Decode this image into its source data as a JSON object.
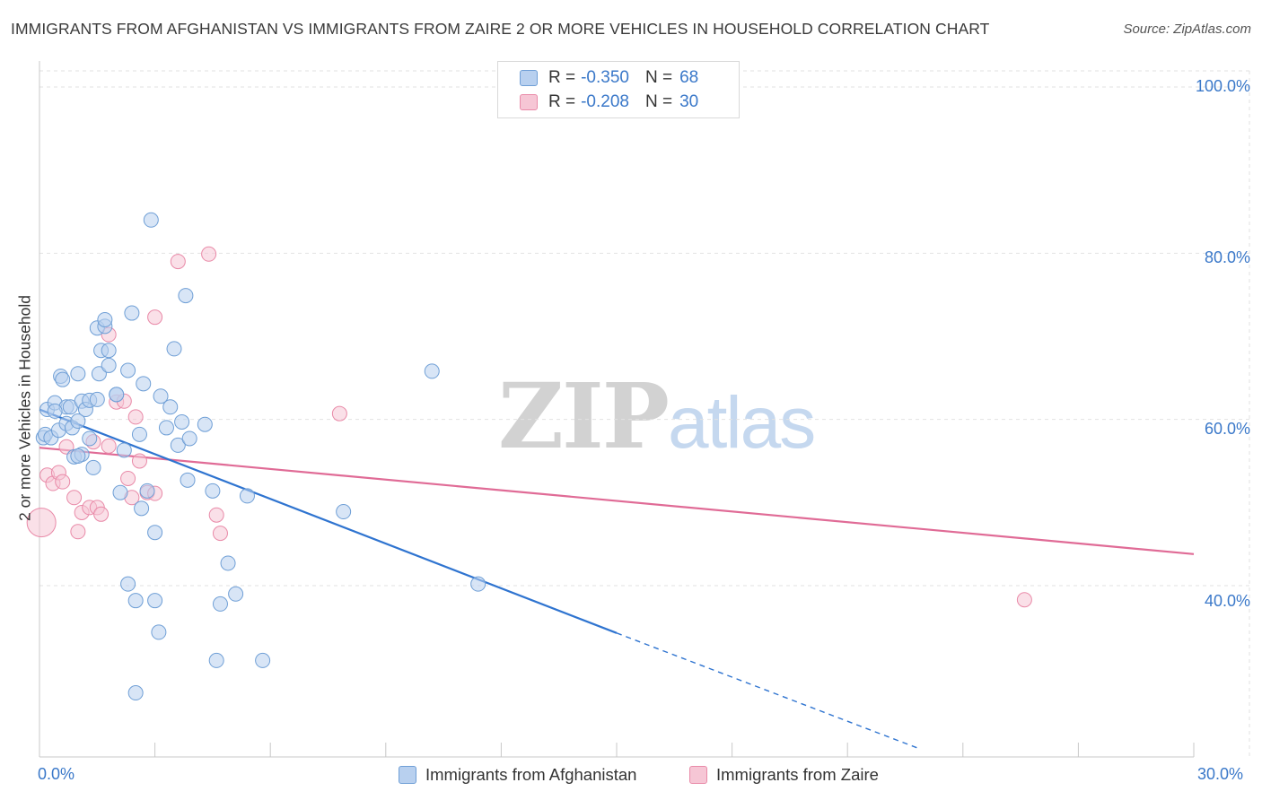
{
  "title": "IMMIGRANTS FROM AFGHANISTAN VS IMMIGRANTS FROM ZAIRE 2 OR MORE VEHICLES IN HOUSEHOLD CORRELATION CHART",
  "source": "Source: ZipAtlas.com",
  "watermark": {
    "zip": "ZIP",
    "atlas": "atlas"
  },
  "colors": {
    "blue_fill": "#b8d0ef",
    "blue_stroke": "#6f9fd6",
    "blue_line": "#2f74d0",
    "pink_fill": "#f6c6d5",
    "pink_stroke": "#e98aa8",
    "pink_line": "#e06b96",
    "grid": "#e2e2e2",
    "tick_label": "#3a78c9"
  },
  "legend_top": [
    {
      "r_label": "R =",
      "r_value": "-0.350",
      "n_label": "N =",
      "n_value": "68"
    },
    {
      "r_label": "R =",
      "r_value": "-0.208",
      "n_label": "N =",
      "n_value": "30"
    }
  ],
  "chart_data": {
    "type": "scatter",
    "title": "IMMIGRANTS FROM AFGHANISTAN VS IMMIGRANTS FROM ZAIRE 2 OR MORE VEHICLES IN HOUSEHOLD CORRELATION CHART",
    "xlabel": "",
    "ylabel": "2 or more Vehicles in Household",
    "xlim": [
      0,
      30
    ],
    "ylim": [
      22,
      103
    ],
    "x_tick_labels": [
      "0.0%",
      "30.0%"
    ],
    "y_ticks": [
      {
        "value": 100,
        "label": "100.0%"
      },
      {
        "value": 80,
        "label": "80.0%"
      },
      {
        "value": 60,
        "label": "60.0%"
      },
      {
        "value": 40,
        "label": "40.0%"
      }
    ],
    "legend_position": "bottom-center",
    "series": [
      {
        "name": "Immigrants from Afghanistan",
        "R": -0.35,
        "N": 68,
        "trend": {
          "x0": 0,
          "y0": 61.2,
          "x1": 15,
          "y1": 34.3,
          "dash_to_x": 22.8,
          "dash_to_y": 20.5
        },
        "points": [
          {
            "x": 0.1,
            "y": 57.8
          },
          {
            "x": 0.15,
            "y": 58.2
          },
          {
            "x": 0.2,
            "y": 61.2
          },
          {
            "x": 0.3,
            "y": 57.8
          },
          {
            "x": 0.4,
            "y": 62.0
          },
          {
            "x": 0.5,
            "y": 58.7
          },
          {
            "x": 0.55,
            "y": 65.2
          },
          {
            "x": 0.6,
            "y": 64.8
          },
          {
            "x": 0.7,
            "y": 61.5
          },
          {
            "x": 0.7,
            "y": 59.5
          },
          {
            "x": 0.8,
            "y": 61.5
          },
          {
            "x": 0.85,
            "y": 59.0
          },
          {
            "x": 0.9,
            "y": 55.5
          },
          {
            "x": 1.0,
            "y": 65.5
          },
          {
            "x": 1.0,
            "y": 59.8
          },
          {
            "x": 1.1,
            "y": 55.8
          },
          {
            "x": 1.1,
            "y": 62.2
          },
          {
            "x": 1.2,
            "y": 61.2
          },
          {
            "x": 1.3,
            "y": 57.7
          },
          {
            "x": 1.3,
            "y": 62.3
          },
          {
            "x": 1.4,
            "y": 54.2
          },
          {
            "x": 1.5,
            "y": 62.4
          },
          {
            "x": 1.5,
            "y": 71.0
          },
          {
            "x": 1.55,
            "y": 65.5
          },
          {
            "x": 1.6,
            "y": 68.3
          },
          {
            "x": 1.7,
            "y": 71.2
          },
          {
            "x": 1.7,
            "y": 72.0
          },
          {
            "x": 1.8,
            "y": 68.3
          },
          {
            "x": 1.8,
            "y": 66.5
          },
          {
            "x": 2.0,
            "y": 63.0
          },
          {
            "x": 2.1,
            "y": 51.2
          },
          {
            "x": 2.2,
            "y": 56.3
          },
          {
            "x": 2.3,
            "y": 40.2
          },
          {
            "x": 2.3,
            "y": 65.9
          },
          {
            "x": 2.4,
            "y": 72.8
          },
          {
            "x": 2.5,
            "y": 38.2
          },
          {
            "x": 2.5,
            "y": 27.1
          },
          {
            "x": 2.6,
            "y": 58.2
          },
          {
            "x": 2.65,
            "y": 49.3
          },
          {
            "x": 2.7,
            "y": 64.3
          },
          {
            "x": 2.8,
            "y": 51.4
          },
          {
            "x": 2.9,
            "y": 84.0
          },
          {
            "x": 3.0,
            "y": 46.4
          },
          {
            "x": 3.0,
            "y": 38.2
          },
          {
            "x": 3.1,
            "y": 34.4
          },
          {
            "x": 3.15,
            "y": 62.8
          },
          {
            "x": 3.3,
            "y": 59.0
          },
          {
            "x": 3.4,
            "y": 61.5
          },
          {
            "x": 3.5,
            "y": 68.5
          },
          {
            "x": 3.6,
            "y": 56.9
          },
          {
            "x": 3.7,
            "y": 59.7
          },
          {
            "x": 3.8,
            "y": 74.9
          },
          {
            "x": 3.85,
            "y": 52.7
          },
          {
            "x": 3.9,
            "y": 57.7
          },
          {
            "x": 4.3,
            "y": 59.4
          },
          {
            "x": 4.5,
            "y": 51.4
          },
          {
            "x": 4.6,
            "y": 31.0
          },
          {
            "x": 4.7,
            "y": 37.8
          },
          {
            "x": 4.9,
            "y": 42.7
          },
          {
            "x": 5.1,
            "y": 39.0
          },
          {
            "x": 5.8,
            "y": 31.0
          },
          {
            "x": 5.4,
            "y": 50.8
          },
          {
            "x": 7.9,
            "y": 48.9
          },
          {
            "x": 10.2,
            "y": 65.8
          },
          {
            "x": 11.4,
            "y": 40.2
          },
          {
            "x": 1.0,
            "y": 55.6
          },
          {
            "x": 2.0,
            "y": 63.0
          },
          {
            "x": 0.4,
            "y": 61.0
          }
        ]
      },
      {
        "name": "Immigrants from Zaire",
        "R": -0.208,
        "N": 30,
        "trend": {
          "x0": 0,
          "y0": 56.6,
          "x1": 30,
          "y1": 43.8
        },
        "points": [
          {
            "x": 0.05,
            "y": 47.6,
            "big": true
          },
          {
            "x": 0.2,
            "y": 53.3
          },
          {
            "x": 0.35,
            "y": 52.3
          },
          {
            "x": 0.5,
            "y": 53.6
          },
          {
            "x": 0.6,
            "y": 52.5
          },
          {
            "x": 0.7,
            "y": 56.7
          },
          {
            "x": 0.9,
            "y": 50.6
          },
          {
            "x": 1.0,
            "y": 46.5
          },
          {
            "x": 1.1,
            "y": 48.8
          },
          {
            "x": 1.3,
            "y": 49.4
          },
          {
            "x": 1.4,
            "y": 57.3
          },
          {
            "x": 1.5,
            "y": 49.4
          },
          {
            "x": 1.6,
            "y": 48.6
          },
          {
            "x": 1.8,
            "y": 56.8
          },
          {
            "x": 1.8,
            "y": 70.2
          },
          {
            "x": 2.0,
            "y": 62.1
          },
          {
            "x": 2.2,
            "y": 62.2
          },
          {
            "x": 2.3,
            "y": 52.9
          },
          {
            "x": 2.4,
            "y": 50.6
          },
          {
            "x": 2.5,
            "y": 60.3
          },
          {
            "x": 2.6,
            "y": 55.0
          },
          {
            "x": 2.8,
            "y": 51.2
          },
          {
            "x": 3.0,
            "y": 51.1
          },
          {
            "x": 3.0,
            "y": 72.3
          },
          {
            "x": 3.6,
            "y": 79.0
          },
          {
            "x": 4.4,
            "y": 79.9
          },
          {
            "x": 4.6,
            "y": 48.5
          },
          {
            "x": 4.7,
            "y": 46.3
          },
          {
            "x": 7.8,
            "y": 60.7
          },
          {
            "x": 25.6,
            "y": 38.3
          }
        ]
      }
    ]
  },
  "legend_bottom": [
    "Immigrants from Afghanistan",
    "Immigrants from Zaire"
  ]
}
